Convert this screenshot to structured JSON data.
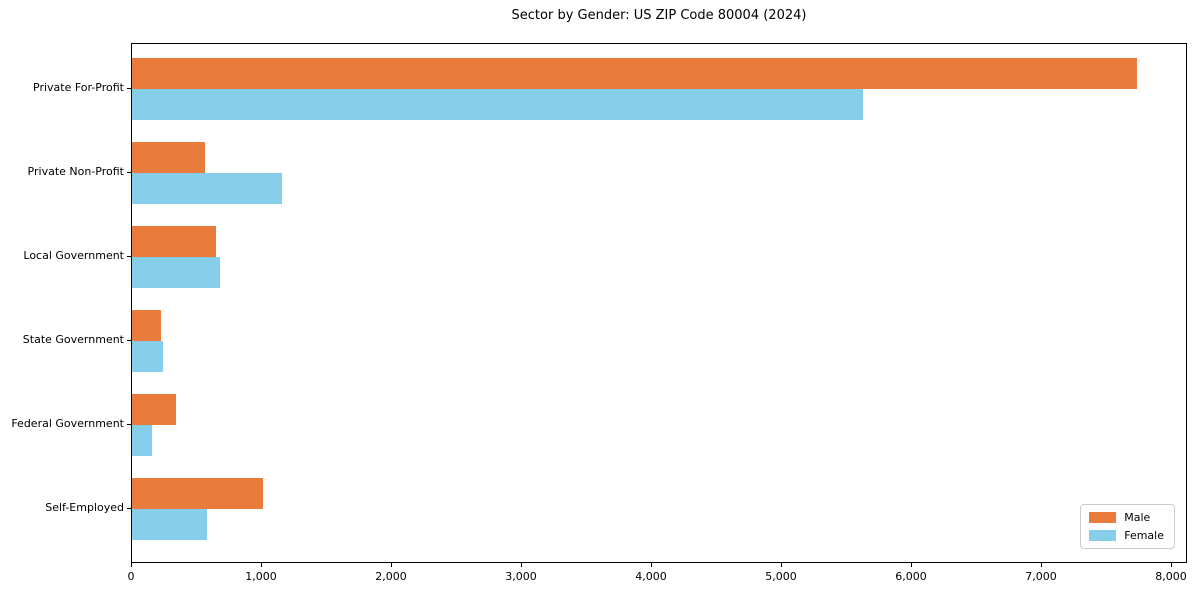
{
  "chart_data": {
    "type": "bar",
    "orientation": "horizontal",
    "title": "Sector by Gender: US ZIP Code 80004 (2024)",
    "categories": [
      "Private For-Profit",
      "Private Non-Profit",
      "Local Government",
      "State Government",
      "Federal Government",
      "Self-Employed"
    ],
    "series": [
      {
        "name": "Male",
        "color": "#E97C3C",
        "values": [
          7730,
          565,
          645,
          220,
          335,
          1010
        ]
      },
      {
        "name": "Female",
        "color": "#87CEEB",
        "values": [
          5620,
          1155,
          680,
          240,
          150,
          580
        ]
      }
    ],
    "xlabel": "",
    "ylabel": "",
    "xlim": [
      0,
      8120
    ],
    "xticks": [
      0,
      1000,
      2000,
      3000,
      4000,
      5000,
      6000,
      7000,
      8000
    ],
    "xtick_labels": [
      "0",
      "1,000",
      "2,000",
      "3,000",
      "4,000",
      "5,000",
      "6,000",
      "7,000",
      "8,000"
    ],
    "grid": false,
    "legend_position": "lower right"
  }
}
